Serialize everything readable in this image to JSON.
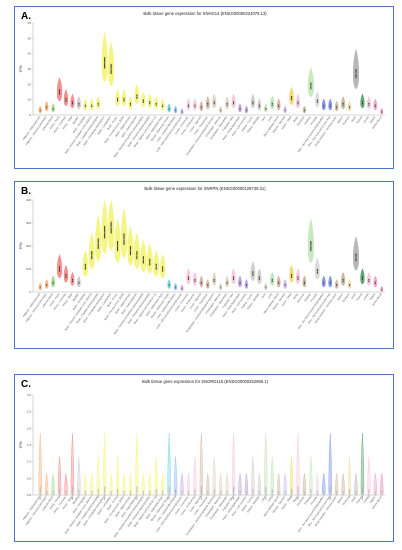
{
  "figure": {
    "labels": [
      "A.",
      "B.",
      "C."
    ]
  },
  "tissues": [
    "Adipose - Subcutaneous",
    "Adipose - Visceral (Omentum)",
    "Adrenal Gland",
    "Artery - Aorta",
    "Artery - Coronary",
    "Artery - Tibial",
    "Bladder",
    "Brain - Amygdala",
    "Brain - Anterior cingulate cortex (BA24)",
    "Brain - Caudate (basal ganglia)",
    "Brain - Cerebellar Hemisphere",
    "Brain - Cerebellum",
    "Brain - Cortex",
    "Brain - Frontal Cortex (BA9)",
    "Brain - Hippocampus",
    "Brain - Hypothalamus",
    "Brain - Nucleus accumbens (basal ganglia)",
    "Brain - Putamen (basal ganglia)",
    "Brain - Spinal cord (cervical c-1)",
    "Brain - Substantia nigra",
    "Breast - Mammary Tissue",
    "Cells - Cultured fibroblasts",
    "Cells - EBV-transformed lymphocytes",
    "Cervix - Ectocervix",
    "Cervix - Endocervix",
    "Colon - Sigmoid",
    "Colon - Transverse",
    "Esophagus - Gastroesophageal Junction",
    "Esophagus - Mucosa",
    "Esophagus - Muscularis",
    "Fallopian Tube",
    "Heart - Atrial Appendage",
    "Heart - Left Ventricle",
    "Kidney - Cortex",
    "Kidney - Medulla",
    "Liver",
    "Lung",
    "Minor Salivary Gland",
    "Muscle - Skeletal",
    "Nerve - Tibial",
    "Ovary",
    "Pancreas",
    "Pituitary",
    "Prostate",
    "Skin - Not Sun Exposed (Suprapubic)",
    "Skin - Sun Exposed (Lower leg)",
    "Small Intestine - Terminal Ileum",
    "Spleen",
    "Stomach",
    "Testis",
    "Thyroid",
    "Uterus",
    "Vagina",
    "Whole Blood"
  ],
  "chart_data": [
    {
      "type": "violin",
      "title": "Bulk tissue gene expression for SNHG14 (ENSG00000224078.13)",
      "ylabel": "TPM",
      "ylim": [
        0,
        60
      ],
      "yticks": [
        0,
        10,
        20,
        30,
        40,
        50,
        60
      ],
      "medians": [
        3,
        5,
        4,
        15,
        10,
        8,
        7,
        6,
        6,
        7,
        34,
        30,
        10,
        10,
        7,
        12,
        9,
        8,
        7,
        6,
        4,
        3,
        2,
        6,
        6,
        5,
        7,
        8,
        3,
        7,
        8,
        4,
        3,
        8,
        6,
        4,
        7,
        6,
        3,
        11,
        8,
        3,
        19,
        9,
        6,
        6,
        5,
        7,
        5,
        27,
        8,
        7,
        6,
        2
      ],
      "colors": [
        "#f4a15a",
        "#f4a15a",
        "#8fd16a",
        "#f26b6b",
        "#f26b6b",
        "#f26b6b",
        "#c0c0c0",
        "#f2f25a",
        "#f2f25a",
        "#f2f25a",
        "#f2f25a",
        "#f2f25a",
        "#f2f25a",
        "#f2f25a",
        "#f2f25a",
        "#f2f25a",
        "#f2f25a",
        "#f2f25a",
        "#f2f25a",
        "#f2f25a",
        "#4ecbd9",
        "#6ab0ff",
        "#c78dd8",
        "#f7b7d0",
        "#f7b7d0",
        "#c9a38a",
        "#c9a38a",
        "#d8c8b0",
        "#d8c8b0",
        "#d8c8b0",
        "#f7b7d0",
        "#a88ad8",
        "#a88ad8",
        "#c0c0c0",
        "#c0c0c0",
        "#c2d1a0",
        "#a0e0a0",
        "#c9a38a",
        "#b8a8f0",
        "#f2d04a",
        "#f7b7d0",
        "#b7a07a",
        "#b6e0a8",
        "#d0d0d0",
        "#5a7ae0",
        "#5a7ae0",
        "#c9a38a",
        "#b7a07a",
        "#e8d890",
        "#a0a0a0",
        "#2f8c3f",
        "#f7b7d0",
        "#f08ab0",
        "#e070a0"
      ]
    },
    {
      "type": "violin",
      "title": "Bulk tissue gene expression for SNRPN (ENSG00000128739.21)",
      "ylabel": "TPM",
      "ylim": [
        0,
        400
      ],
      "yticks": [
        0,
        100,
        200,
        300,
        400
      ],
      "medians": [
        20,
        30,
        40,
        100,
        70,
        50,
        40,
        110,
        160,
        210,
        260,
        280,
        200,
        230,
        180,
        160,
        140,
        130,
        110,
        100,
        30,
        20,
        15,
        60,
        50,
        40,
        30,
        50,
        20,
        40,
        60,
        40,
        30,
        80,
        60,
        20,
        50,
        40,
        30,
        70,
        60,
        40,
        200,
        90,
        40,
        40,
        30,
        50,
        30,
        150,
        60,
        50,
        40,
        10
      ],
      "colors": [
        "#f4a15a",
        "#f4a15a",
        "#8fd16a",
        "#f26b6b",
        "#f26b6b",
        "#f26b6b",
        "#c0c0c0",
        "#f2f25a",
        "#f2f25a",
        "#f2f25a",
        "#f2f25a",
        "#f2f25a",
        "#f2f25a",
        "#f2f25a",
        "#f2f25a",
        "#f2f25a",
        "#f2f25a",
        "#f2f25a",
        "#f2f25a",
        "#f2f25a",
        "#4ecbd9",
        "#6ab0ff",
        "#c78dd8",
        "#f7b7d0",
        "#f7b7d0",
        "#c9a38a",
        "#c9a38a",
        "#d8c8b0",
        "#d8c8b0",
        "#d8c8b0",
        "#f7b7d0",
        "#a88ad8",
        "#a88ad8",
        "#c0c0c0",
        "#c0c0c0",
        "#c2d1a0",
        "#a0e0a0",
        "#c9a38a",
        "#b8a8f0",
        "#f2d04a",
        "#f7b7d0",
        "#b7a07a",
        "#b6e0a8",
        "#d0d0d0",
        "#5a7ae0",
        "#5a7ae0",
        "#c9a38a",
        "#b7a07a",
        "#e8d890",
        "#a0a0a0",
        "#2f8c3f",
        "#f7b7d0",
        "#f08ab0",
        "#e070a0"
      ]
    },
    {
      "type": "violin",
      "title": "Bulk tissue gene expression for SNORD116 (ENSG00000252965.1)",
      "ylabel": "TPM",
      "ylim": [
        0,
        3.0
      ],
      "yticks": [
        0.0,
        0.5,
        1.0,
        1.5,
        2.0,
        2.5,
        3.0
      ],
      "medians": [
        0.05,
        0.05,
        0.05,
        0.05,
        0.05,
        0.05,
        0.05,
        0.05,
        0.05,
        0.05,
        0.05,
        0.05,
        0.05,
        0.05,
        0.05,
        0.05,
        0.05,
        0.05,
        0.05,
        0.05,
        0.05,
        0.05,
        0.05,
        0.05,
        0.05,
        0.05,
        0.05,
        0.05,
        0.05,
        0.05,
        0.05,
        0.05,
        0.05,
        0.05,
        0.05,
        0.05,
        0.05,
        0.05,
        0.05,
        0.05,
        0.05,
        0.05,
        0.05,
        0.05,
        0.05,
        0.05,
        0.05,
        0.05,
        0.05,
        0.05,
        0.05,
        0.05,
        0.05,
        0.05
      ],
      "colors": [
        "#f4a15a",
        "#f4a15a",
        "#8fd16a",
        "#f26b6b",
        "#f26b6b",
        "#f26b6b",
        "#c0c0c0",
        "#f2f25a",
        "#f2f25a",
        "#f2f25a",
        "#f2f25a",
        "#f2f25a",
        "#f2f25a",
        "#f2f25a",
        "#f2f25a",
        "#f2f25a",
        "#f2f25a",
        "#f2f25a",
        "#f2f25a",
        "#f2f25a",
        "#4ecbd9",
        "#6ab0ff",
        "#c78dd8",
        "#f7b7d0",
        "#f7b7d0",
        "#c9a38a",
        "#c9a38a",
        "#d8c8b0",
        "#d8c8b0",
        "#d8c8b0",
        "#f7b7d0",
        "#a88ad8",
        "#a88ad8",
        "#c0c0c0",
        "#c0c0c0",
        "#c2d1a0",
        "#a0e0a0",
        "#c9a38a",
        "#b8a8f0",
        "#f2d04a",
        "#f7b7d0",
        "#b7a07a",
        "#b6e0a8",
        "#d0d0d0",
        "#5a7ae0",
        "#5a7ae0",
        "#c9a38a",
        "#b7a07a",
        "#e8d890",
        "#a0a0a0",
        "#2f8c3f",
        "#f7b7d0",
        "#f08ab0",
        "#e070a0"
      ]
    }
  ]
}
